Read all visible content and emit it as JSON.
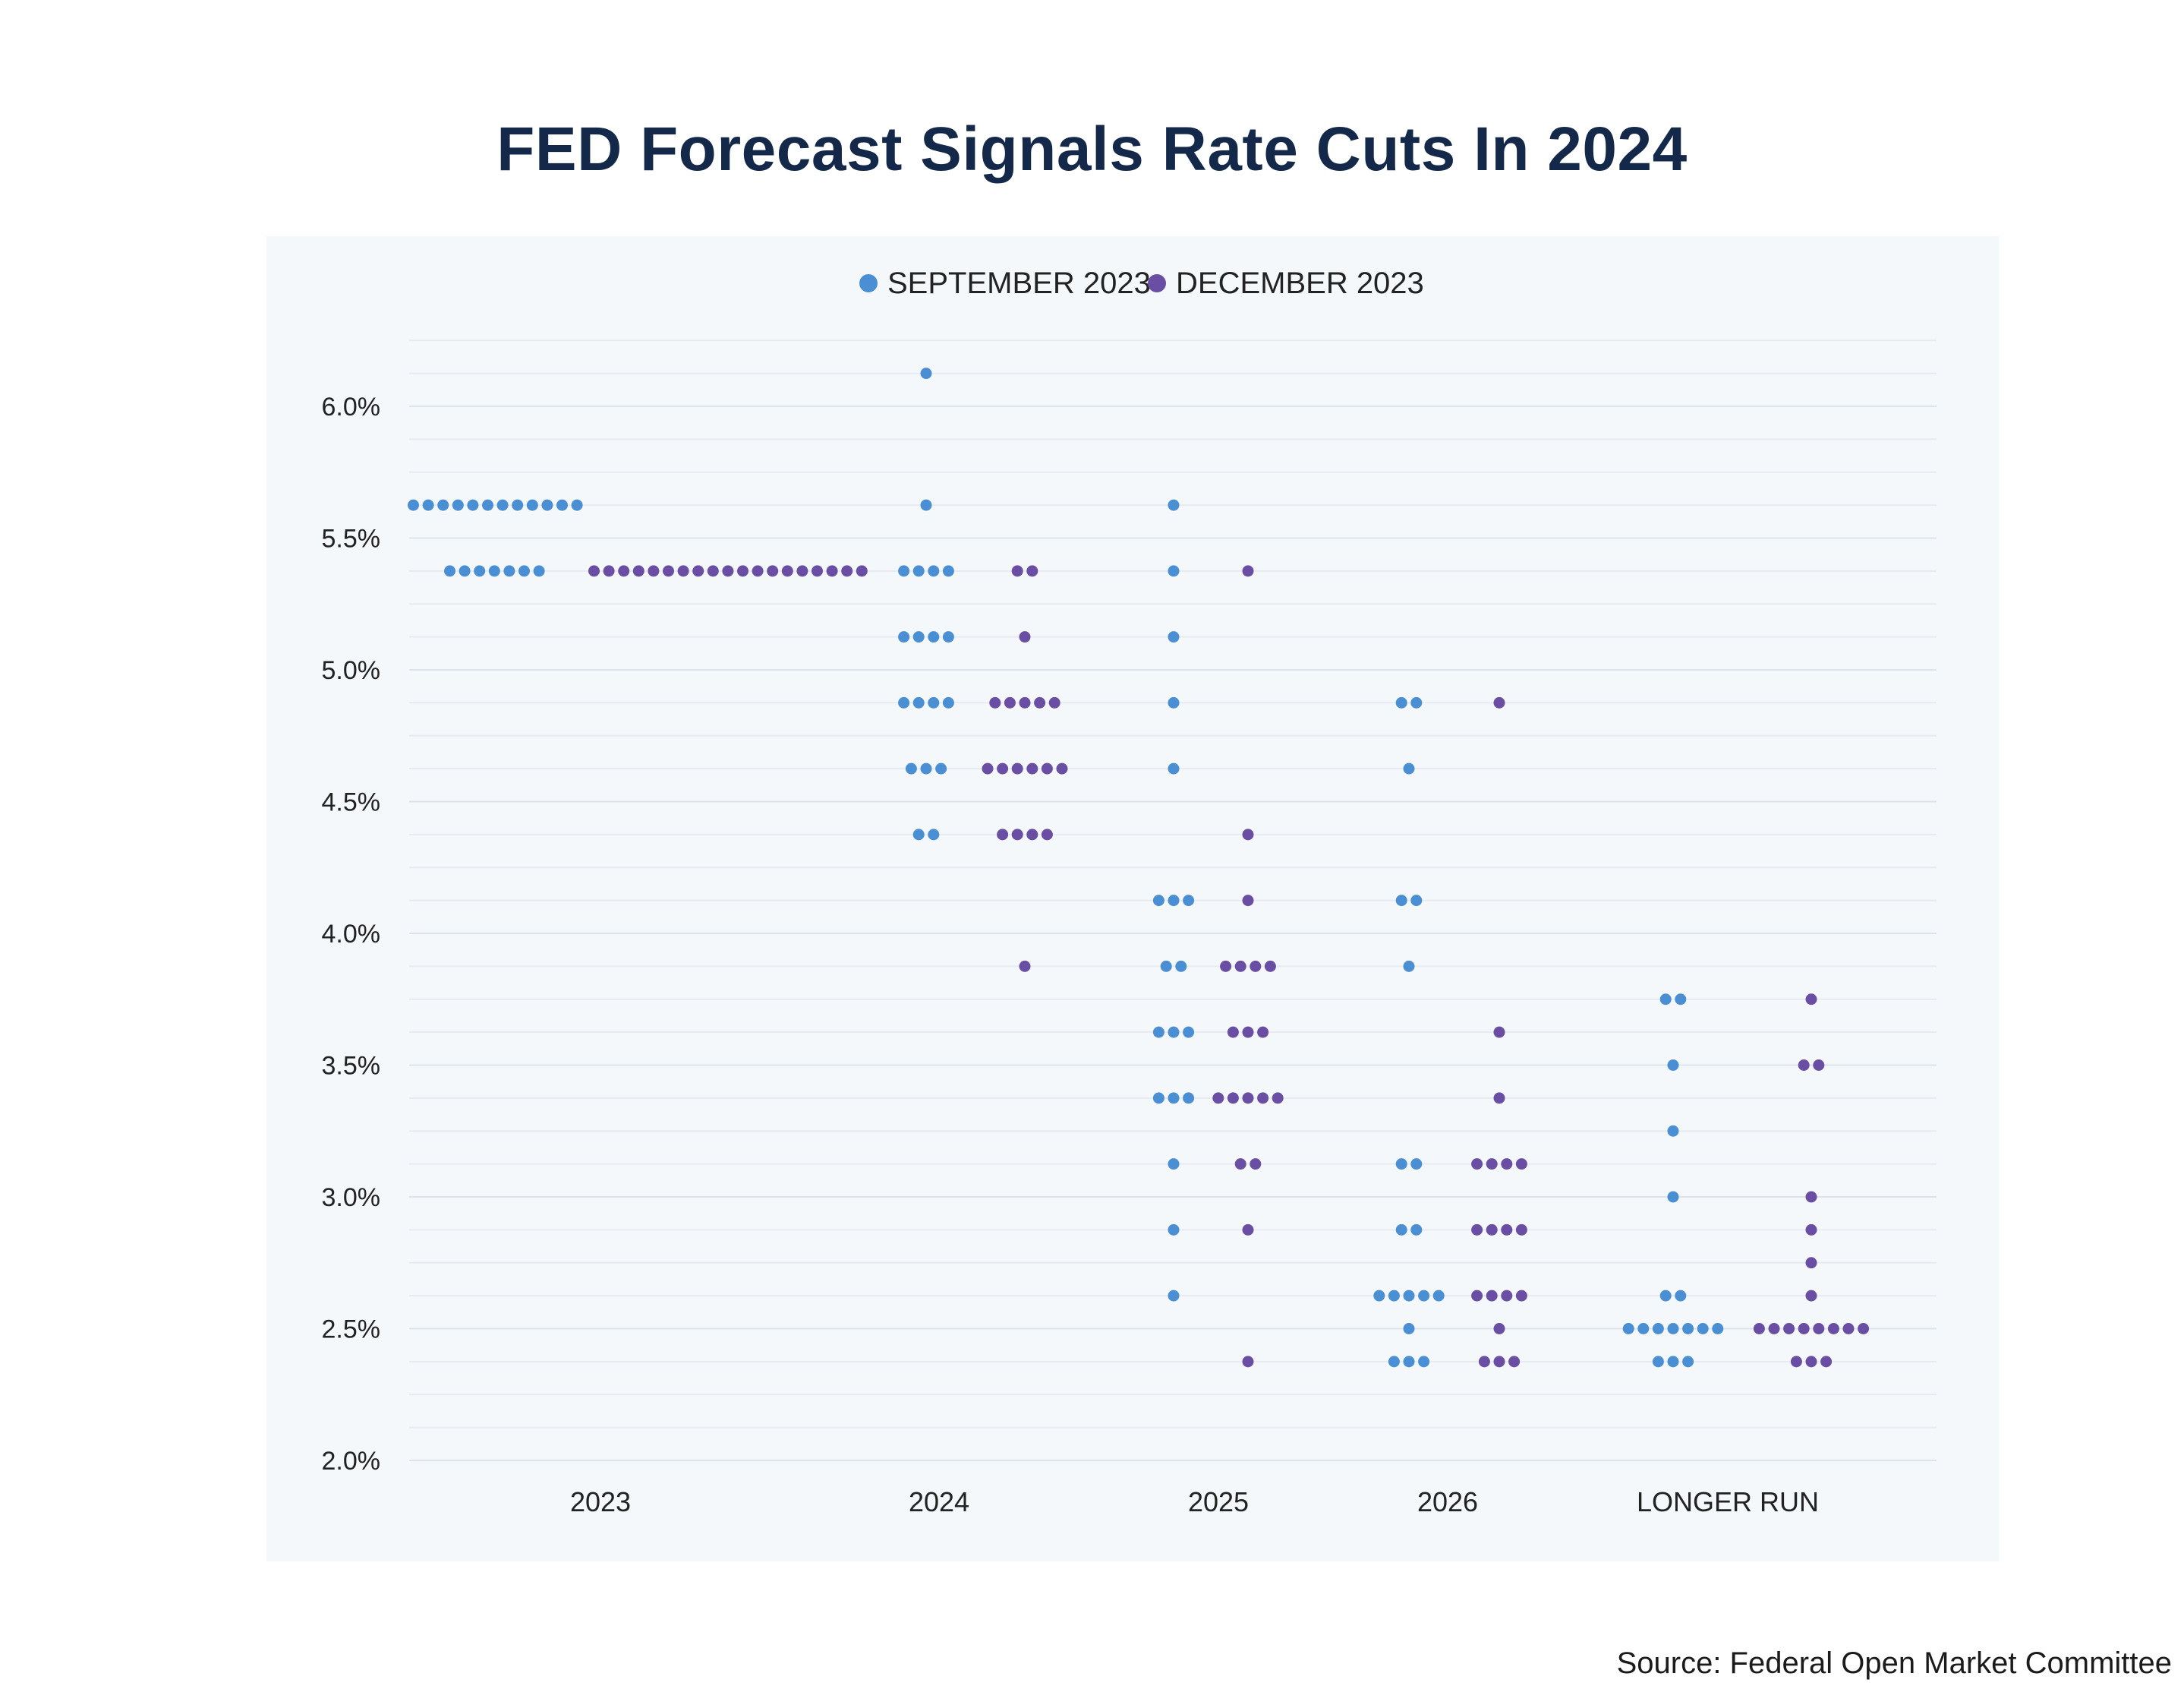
{
  "title": "FED Forecast Signals Rate Cuts In 2024",
  "source": "Source: Federal Open Market Committee",
  "chart_data": {
    "type": "scatter",
    "subtype": "dot-plot",
    "legend_position": "top-center",
    "grid": true,
    "ylim": [
      2.0,
      6.25
    ],
    "yticks": [
      {
        "value": 6.0,
        "label": "6.0%"
      },
      {
        "value": 5.5,
        "label": "5.5%"
      },
      {
        "value": 5.0,
        "label": "5.0%"
      },
      {
        "value": 4.5,
        "label": "4.5%"
      },
      {
        "value": 4.0,
        "label": "4.0%"
      },
      {
        "value": 3.5,
        "label": "3.5%"
      },
      {
        "value": 3.0,
        "label": "3.0%"
      },
      {
        "value": 2.5,
        "label": "2.5%"
      },
      {
        "value": 2.0,
        "label": "2.0%"
      }
    ],
    "categories": [
      "2023",
      "2024",
      "2025",
      "2026",
      "LONGER RUN"
    ],
    "series": [
      {
        "name": "SEPTEMBER 2023",
        "color": "#4a8fd3",
        "points": [
          {
            "category": "2023",
            "groups": [
              {
                "y": 5.625,
                "count": 12
              },
              {
                "y": 5.375,
                "count": 7
              }
            ]
          },
          {
            "category": "2024",
            "groups": [
              {
                "y": 6.125,
                "count": 1
              },
              {
                "y": 5.625,
                "count": 1
              },
              {
                "y": 5.375,
                "count": 4
              },
              {
                "y": 5.125,
                "count": 4
              },
              {
                "y": 4.875,
                "count": 4
              },
              {
                "y": 4.625,
                "count": 3
              },
              {
                "y": 4.375,
                "count": 2
              }
            ]
          },
          {
            "category": "2025",
            "groups": [
              {
                "y": 5.625,
                "count": 1
              },
              {
                "y": 5.375,
                "count": 1
              },
              {
                "y": 5.125,
                "count": 1
              },
              {
                "y": 4.875,
                "count": 1
              },
              {
                "y": 4.625,
                "count": 1
              },
              {
                "y": 4.125,
                "count": 3
              },
              {
                "y": 3.875,
                "count": 2
              },
              {
                "y": 3.625,
                "count": 3
              },
              {
                "y": 3.375,
                "count": 3
              },
              {
                "y": 3.125,
                "count": 1
              },
              {
                "y": 2.875,
                "count": 1
              },
              {
                "y": 2.625,
                "count": 1
              }
            ]
          },
          {
            "category": "2026",
            "groups": [
              {
                "y": 4.875,
                "count": 2
              },
              {
                "y": 4.625,
                "count": 1
              },
              {
                "y": 4.125,
                "count": 2
              },
              {
                "y": 3.875,
                "count": 1
              },
              {
                "y": 3.125,
                "count": 2
              },
              {
                "y": 2.875,
                "count": 2
              },
              {
                "y": 2.625,
                "count": 5
              },
              {
                "y": 2.5,
                "count": 1
              },
              {
                "y": 2.375,
                "count": 3
              }
            ]
          },
          {
            "category": "LONGER RUN",
            "groups": [
              {
                "y": 3.75,
                "count": 2
              },
              {
                "y": 3.5,
                "count": 1
              },
              {
                "y": 3.25,
                "count": 1
              },
              {
                "y": 3.0,
                "count": 1
              },
              {
                "y": 2.625,
                "count": 2
              },
              {
                "y": 2.5,
                "count": 7
              },
              {
                "y": 2.375,
                "count": 3
              }
            ]
          }
        ]
      },
      {
        "name": "DECEMBER 2023",
        "color": "#6a4ea3",
        "points": [
          {
            "category": "2023",
            "groups": [
              {
                "y": 5.375,
                "count": 19
              }
            ]
          },
          {
            "category": "2024",
            "groups": [
              {
                "y": 5.375,
                "count": 2
              },
              {
                "y": 5.125,
                "count": 1
              },
              {
                "y": 4.875,
                "count": 5
              },
              {
                "y": 4.625,
                "count": 6
              },
              {
                "y": 4.375,
                "count": 4
              },
              {
                "y": 3.875,
                "count": 1
              }
            ]
          },
          {
            "category": "2025",
            "groups": [
              {
                "y": 5.375,
                "count": 1
              },
              {
                "y": 4.375,
                "count": 1
              },
              {
                "y": 4.125,
                "count": 1
              },
              {
                "y": 3.875,
                "count": 4
              },
              {
                "y": 3.625,
                "count": 3
              },
              {
                "y": 3.375,
                "count": 5
              },
              {
                "y": 3.125,
                "count": 2
              },
              {
                "y": 2.875,
                "count": 1
              },
              {
                "y": 2.375,
                "count": 1
              }
            ]
          },
          {
            "category": "2026",
            "groups": [
              {
                "y": 4.875,
                "count": 1
              },
              {
                "y": 3.625,
                "count": 1
              },
              {
                "y": 3.375,
                "count": 1
              },
              {
                "y": 3.125,
                "count": 4
              },
              {
                "y": 2.875,
                "count": 4
              },
              {
                "y": 2.625,
                "count": 4
              },
              {
                "y": 2.5,
                "count": 1
              },
              {
                "y": 2.375,
                "count": 3
              }
            ]
          },
          {
            "category": "LONGER RUN",
            "groups": [
              {
                "y": 3.75,
                "count": 1
              },
              {
                "y": 3.5,
                "count": 2
              },
              {
                "y": 3.0,
                "count": 1
              },
              {
                "y": 2.875,
                "count": 1
              },
              {
                "y": 2.75,
                "count": 1
              },
              {
                "y": 2.625,
                "count": 1
              },
              {
                "y": 2.5,
                "count": 8
              },
              {
                "y": 2.375,
                "count": 3
              }
            ]
          }
        ]
      }
    ]
  }
}
